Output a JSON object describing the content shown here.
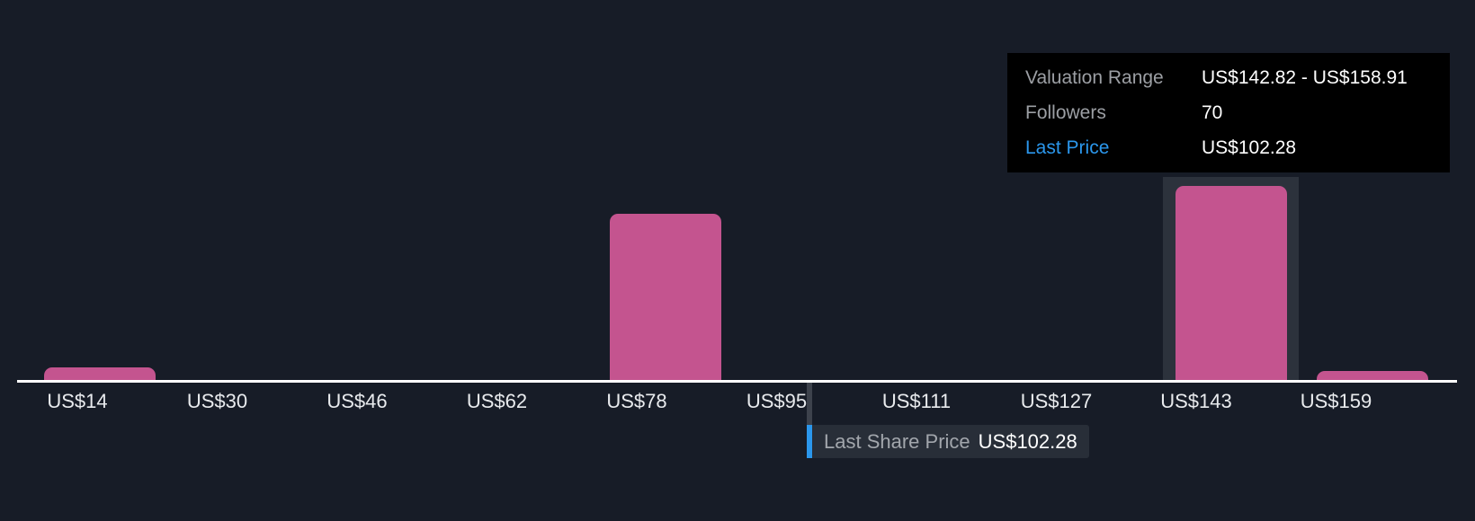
{
  "colors": {
    "background": "#171c27",
    "bar": "#c4548f",
    "band": "#2c323c",
    "axis": "#ffffff",
    "tick_text": "#e9ebee",
    "marker_stub": "#3d424c",
    "accent_blue": "#2b97ec",
    "marker_box_bg": "#282e38",
    "muted_text": "#a2a6ac",
    "tooltip_bg": "#000000",
    "tooltip_label": "#9c9fa4",
    "tooltip_value": "#ffffff"
  },
  "tooltip": {
    "rows": [
      {
        "label": "Valuation Range",
        "value": "US$142.82 - US$158.91",
        "accent": false
      },
      {
        "label": "Followers",
        "value": "70",
        "accent": false
      },
      {
        "label": "Last Price",
        "value": "US$102.28",
        "accent": true
      }
    ]
  },
  "last_price_marker": {
    "label": "Last Share Price",
    "value": "US$102.28"
  },
  "chart_data": {
    "type": "bar",
    "title": "",
    "xlabel": "",
    "ylabel": "",
    "grid": false,
    "legend": false,
    "x_tick_labels": [
      "US$14",
      "US$30",
      "US$46",
      "US$62",
      "US$78",
      "US$95",
      "US$111",
      "US$127",
      "US$143",
      "US$159"
    ],
    "categories": [
      "US$14",
      "US$78",
      "US$143",
      "US$159"
    ],
    "values": [
      1,
      13,
      15,
      1
    ],
    "bars": [
      {
        "bin_index": 0,
        "label": "US$14",
        "relative_height": 0.065,
        "estimated_count": 1,
        "highlighted": false
      },
      {
        "bin_index": 4,
        "label": "US$78",
        "relative_height": 0.856,
        "estimated_count": 13,
        "highlighted": false
      },
      {
        "bin_index": 8,
        "label": "US$143",
        "relative_height": 1.0,
        "estimated_count": 15,
        "highlighted": true
      },
      {
        "bin_index": 9,
        "label": "US$159",
        "relative_height": 0.046,
        "estimated_count": 1,
        "highlighted": false
      }
    ],
    "highlighted_bin_label": "US$143",
    "last_share_price": {
      "label": "Last Share Price",
      "value": "US$102.28",
      "position_between_ticks": [
        "US$95",
        "US$111"
      ]
    },
    "x_axis_range_labels": [
      "US$14",
      "US$159"
    ]
  }
}
